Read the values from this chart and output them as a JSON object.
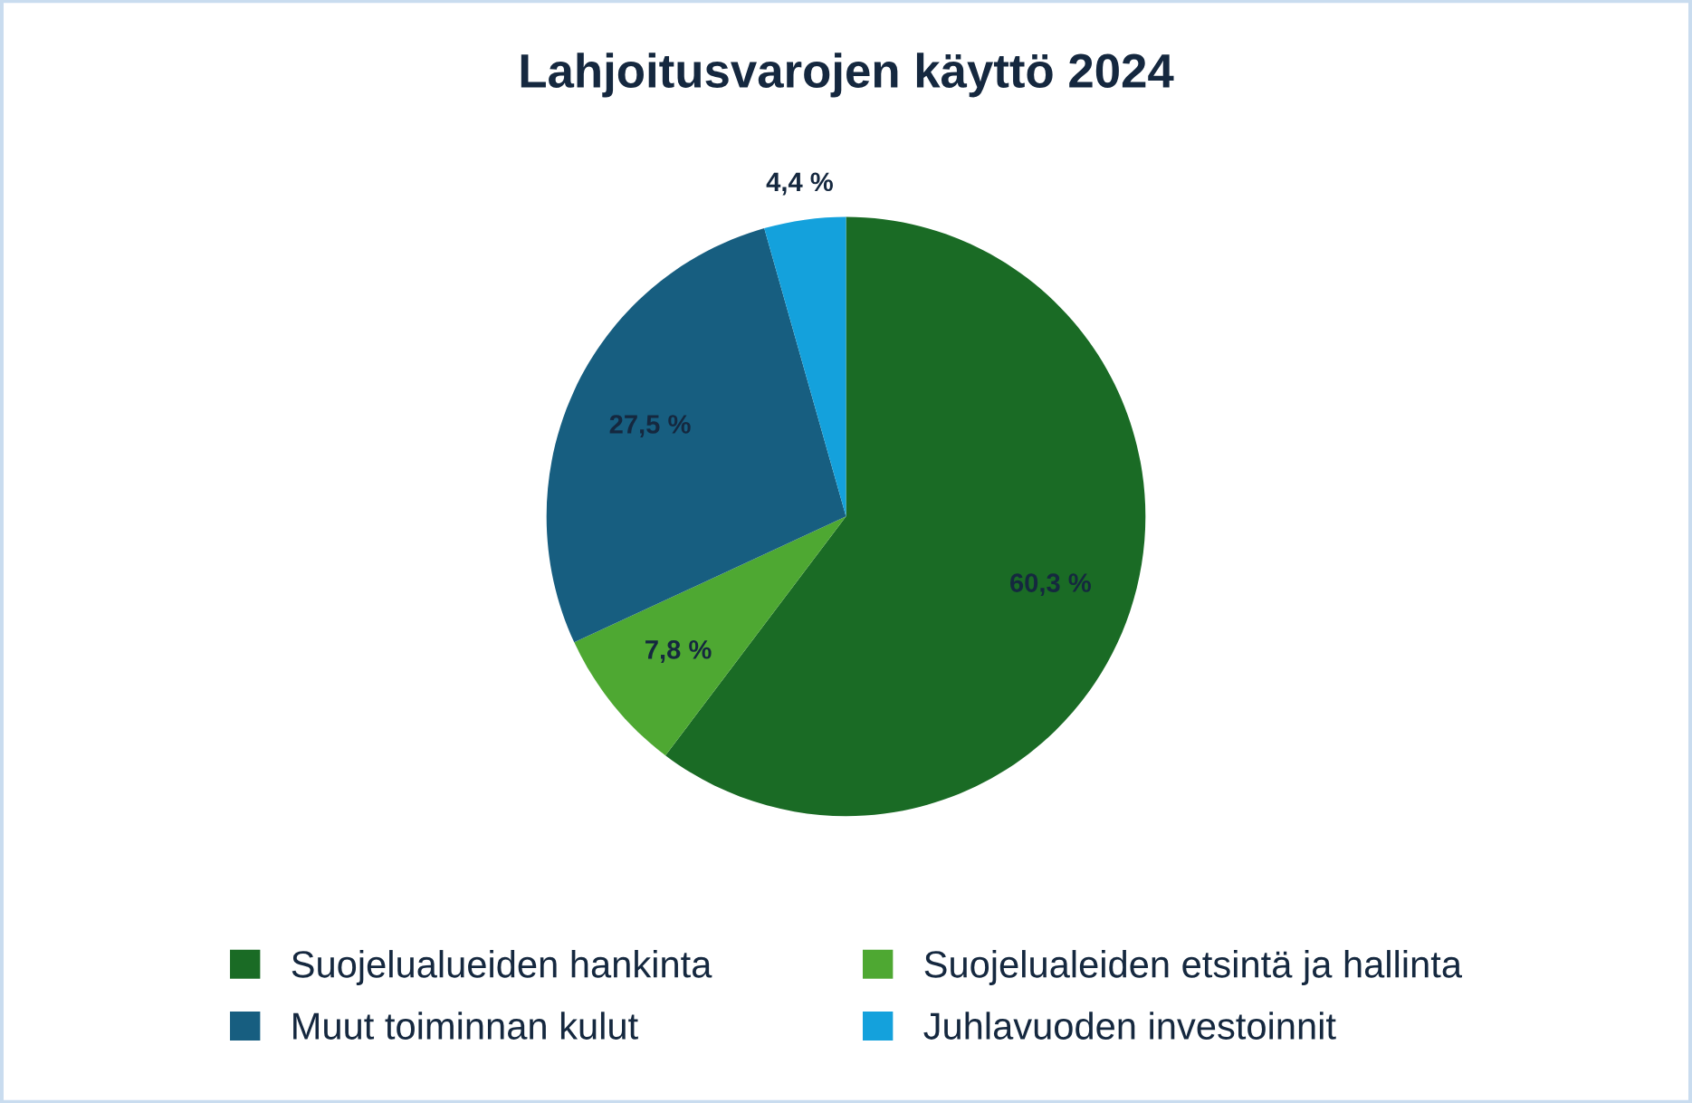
{
  "chart_data": {
    "type": "pie",
    "title": "Lahjoitusvarojen käyttö 2024",
    "categories": [
      "Suojelualueiden hankinta",
      "Suojelualeiden etsintä ja hallinta",
      "Muut toiminnan kulut",
      "Juhlavuoden investoinnit"
    ],
    "values": [
      60.3,
      7.8,
      27.5,
      4.4
    ],
    "colors": [
      "#1a6b25",
      "#4ea832",
      "#175e80",
      "#14a1dc"
    ],
    "value_labels": [
      "60,3 %",
      "7,8 %",
      "27,5 %",
      "4,4 %"
    ],
    "legend": "bottom"
  }
}
